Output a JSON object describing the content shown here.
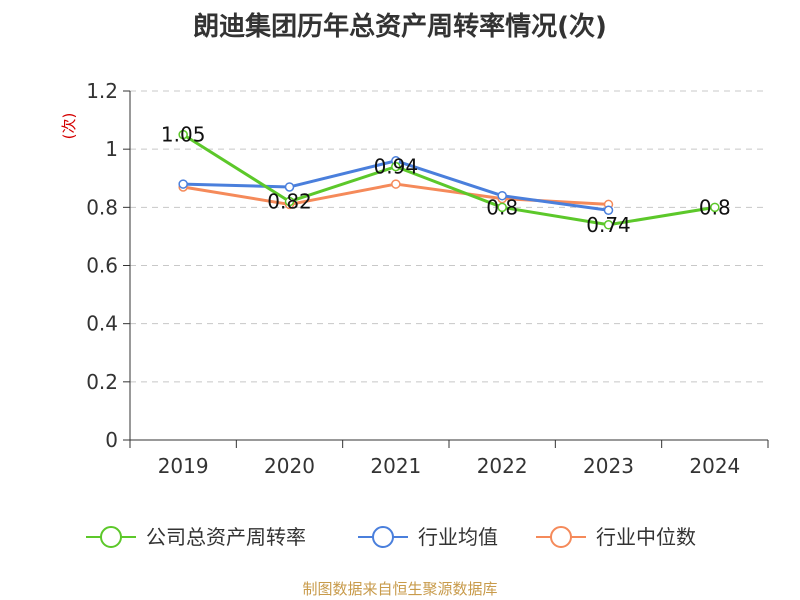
{
  "chart_data": {
    "type": "line",
    "title": "朗迪集团历年总资产周转率情况(次)",
    "ylabel": "(次)",
    "xlabel": "",
    "categories": [
      "2019",
      "2020",
      "2021",
      "2022",
      "2023",
      "2024"
    ],
    "ylim": [
      0,
      1.2
    ],
    "yticks": [
      0,
      0.2,
      0.4,
      0.6,
      0.8,
      1,
      1.2
    ],
    "ytick_labels": [
      "0",
      "0.2",
      "0.4",
      "0.6",
      "0.8",
      "1",
      "1.2"
    ],
    "grid": true,
    "legend_position": "bottom",
    "series": [
      {
        "name": "公司总资产周转率",
        "color": "#5cc82a",
        "values": [
          1.05,
          0.82,
          0.94,
          0.8,
          0.74,
          0.8
        ],
        "data_labels": [
          "1.05",
          "0.82",
          "0.94",
          "0.8",
          "0.74",
          "0.8"
        ]
      },
      {
        "name": "行业均值",
        "color": "#4a7fdc",
        "values": [
          0.88,
          0.87,
          0.96,
          0.84,
          0.79,
          null
        ]
      },
      {
        "name": "行业中位数",
        "color": "#f58a5a",
        "values": [
          0.87,
          0.81,
          0.88,
          0.83,
          0.81,
          null
        ]
      }
    ]
  },
  "source": "制图数据来自恒生聚源数据库"
}
